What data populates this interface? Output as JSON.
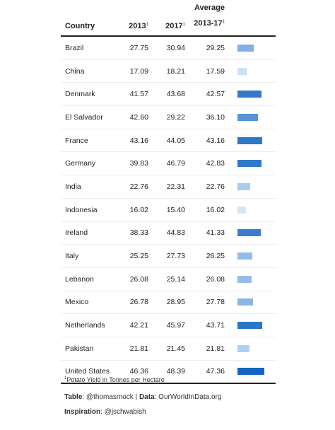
{
  "headers": {
    "country": "Country",
    "y2013": "2013",
    "y2017": "2017",
    "avg_top": "Average",
    "avg_bottom": "2013-17",
    "footnote_marker": "1"
  },
  "footnote": {
    "marker": "1",
    "text": "Potato Yield in Tonnes per Hectare"
  },
  "source": {
    "table_label": "Table",
    "table_value": ": @thomasmock | ",
    "data_label": "Data",
    "data_value": ": OurWorldInData.org",
    "inspiration_label": "Inspiration",
    "inspiration_value": ": @jschwabish"
  },
  "bar_colors": {
    "low": "#d2e7fa",
    "high": "#1565c0"
  },
  "chart_data": {
    "type": "table",
    "columns": [
      "Country",
      "2013",
      "2017",
      "Average 2013-17"
    ],
    "rows": [
      {
        "country": "Brazil",
        "y2013": "27.75",
        "y2017": "30.94",
        "avg": "29.25"
      },
      {
        "country": "China",
        "y2013": "17.09",
        "y2017": "18.21",
        "avg": "17.59"
      },
      {
        "country": "Denmark",
        "y2013": "41.57",
        "y2017": "43.68",
        "avg": "42.57"
      },
      {
        "country": "El Salvador",
        "y2013": "42.60",
        "y2017": "29.22",
        "avg": "36.10"
      },
      {
        "country": "France",
        "y2013": "43.16",
        "y2017": "44.05",
        "avg": "43.16"
      },
      {
        "country": "Germany",
        "y2013": "39.83",
        "y2017": "46.79",
        "avg": "42.83"
      },
      {
        "country": "India",
        "y2013": "22.76",
        "y2017": "22.31",
        "avg": "22.76"
      },
      {
        "country": "Indonesia",
        "y2013": "16.02",
        "y2017": "15.40",
        "avg": "16.02"
      },
      {
        "country": "Ireland",
        "y2013": "38.33",
        "y2017": "44.83",
        "avg": "41.33"
      },
      {
        "country": "Italy",
        "y2013": "25.25",
        "y2017": "27.73",
        "avg": "26.25"
      },
      {
        "country": "Lebanon",
        "y2013": "26.08",
        "y2017": "25.14",
        "avg": "26.08"
      },
      {
        "country": "Mexico",
        "y2013": "26.78",
        "y2017": "28.95",
        "avg": "27.78"
      },
      {
        "country": "Netherlands",
        "y2013": "42.21",
        "y2017": "45.97",
        "avg": "43.71"
      },
      {
        "country": "Pakistan",
        "y2013": "21.81",
        "y2017": "21.45",
        "avg": "21.81"
      },
      {
        "country": "United States",
        "y2013": "46.36",
        "y2017": "48.39",
        "avg": "47.36"
      }
    ]
  }
}
